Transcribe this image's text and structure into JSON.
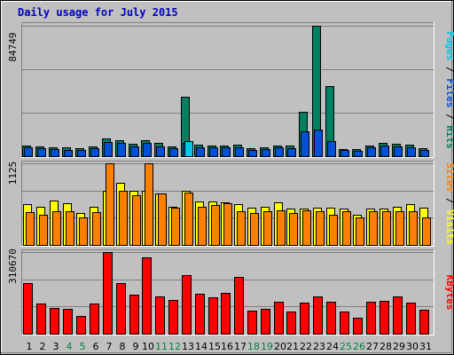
{
  "title": "Daily usage for July 2015",
  "chart_data": [
    {
      "type": "bar",
      "panel": "hits-files-pages",
      "ymax_label": "84749",
      "ylim": [
        0,
        84749
      ],
      "right_label": [
        {
          "text": "Pages",
          "color": "#00c8e8"
        },
        {
          "text": " / ",
          "color": "#000000"
        },
        {
          "text": "Files",
          "color": "#0050d8"
        },
        {
          "text": " / ",
          "color": "#000000"
        },
        {
          "text": "Hits",
          "color": "#008060"
        }
      ],
      "categories": [
        "1",
        "2",
        "3",
        "4",
        "5",
        "6",
        "7",
        "8",
        "9",
        "10",
        "11",
        "12",
        "13",
        "14",
        "15",
        "16",
        "17",
        "18",
        "19",
        "20",
        "21",
        "22",
        "23",
        "24",
        "25",
        "26",
        "27",
        "28",
        "29",
        "30",
        "31"
      ],
      "series": [
        {
          "name": "Hits",
          "color": "#008060",
          "values": [
            7100,
            6600,
            5900,
            5600,
            5000,
            6600,
            11400,
            10500,
            8100,
            10300,
            8600,
            6600,
            38400,
            7400,
            7100,
            7200,
            7400,
            5000,
            6000,
            7100,
            6700,
            28600,
            84749,
            45800,
            4900,
            4800,
            7200,
            8500,
            7900,
            7400,
            5400
          ]
        },
        {
          "name": "Files",
          "color": "#0050d8",
          "values": [
            5500,
            5000,
            4600,
            4300,
            3900,
            5100,
            9300,
            8600,
            6500,
            8400,
            6400,
            5100,
            8400,
            5900,
            5600,
            5700,
            5900,
            3900,
            4600,
            5600,
            5100,
            16100,
            17300,
            9700,
            3800,
            3700,
            5600,
            6800,
            6200,
            5800,
            4100
          ]
        },
        {
          "name": "Pages",
          "color": "#00c8e8",
          "values": [
            0,
            0,
            0,
            0,
            0,
            0,
            0,
            0,
            0,
            0,
            0,
            0,
            9600,
            0,
            0,
            0,
            0,
            0,
            0,
            0,
            0,
            0,
            0,
            0,
            0,
            0,
            0,
            0,
            0,
            0,
            0
          ]
        }
      ]
    },
    {
      "type": "bar",
      "panel": "visits-sites",
      "ymax_label": "1125",
      "ylim": [
        0,
        1125
      ],
      "right_label": [
        {
          "text": "Sites",
          "color": "#ff8000"
        },
        {
          "text": " / ",
          "color": "#000000"
        },
        {
          "text": "Visits",
          "color": "#ffff00"
        }
      ],
      "categories": [
        "1",
        "2",
        "3",
        "4",
        "5",
        "6",
        "7",
        "8",
        "9",
        "10",
        "11",
        "12",
        "13",
        "14",
        "15",
        "16",
        "17",
        "18",
        "19",
        "20",
        "21",
        "22",
        "23",
        "24",
        "25",
        "26",
        "27",
        "28",
        "29",
        "30",
        "31"
      ],
      "series": [
        {
          "name": "Visits",
          "color": "#ffff00",
          "values": [
            560,
            520,
            615,
            575,
            440,
            530,
            740,
            850,
            745,
            740,
            710,
            530,
            745,
            600,
            595,
            590,
            560,
            510,
            520,
            590,
            500,
            500,
            510,
            515,
            500,
            410,
            500,
            505,
            530,
            560,
            515
          ]
        },
        {
          "name": "Sites",
          "color": "#ff8000",
          "values": [
            450,
            415,
            470,
            460,
            375,
            450,
            1125,
            740,
            690,
            1125,
            705,
            510,
            725,
            530,
            550,
            570,
            460,
            440,
            470,
            480,
            435,
            480,
            460,
            420,
            465,
            385,
            460,
            460,
            470,
            465,
            380
          ]
        }
      ]
    },
    {
      "type": "bar",
      "panel": "kbytes",
      "ymax_label": "310670",
      "ylim": [
        0,
        310670
      ],
      "right_label": [
        {
          "text": "KBytes",
          "color": "#ff0000"
        }
      ],
      "categories": [
        "1",
        "2",
        "3",
        "4",
        "5",
        "6",
        "7",
        "8",
        "9",
        "10",
        "11",
        "12",
        "13",
        "14",
        "15",
        "16",
        "17",
        "18",
        "19",
        "20",
        "21",
        "22",
        "23",
        "24",
        "25",
        "26",
        "27",
        "28",
        "29",
        "30",
        "31"
      ],
      "series": [
        {
          "name": "KBytes",
          "color": "#ff0000",
          "values": [
            192000,
            115000,
            98000,
            94000,
            67000,
            116000,
            310670,
            191000,
            147000,
            290000,
            143000,
            128000,
            223000,
            151000,
            138000,
            156000,
            215000,
            88000,
            93000,
            123000,
            85000,
            118000,
            142000,
            123000,
            83000,
            62000,
            120000,
            126000,
            141000,
            117000,
            90000
          ]
        }
      ]
    }
  ],
  "day_colors": {
    "weekday": "#000000",
    "weekend": "#008040"
  },
  "weekend_days": [
    "4",
    "5",
    "11",
    "12",
    "18",
    "19",
    "25",
    "26"
  ]
}
